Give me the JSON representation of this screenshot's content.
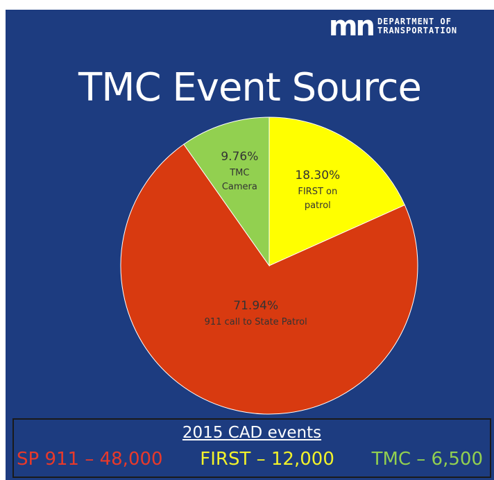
{
  "logo": {
    "mark": "mn",
    "text": "DEPARTMENT OF TRANSPORTATION"
  },
  "chart_data": {
    "type": "pie",
    "title": "TMC Event Source",
    "categories": [
      "FIRST on patrol",
      "911 call to State Patrol",
      "TMC Camera"
    ],
    "values": [
      18.3,
      71.94,
      9.76
    ],
    "value_labels": [
      "18.30%",
      "71.94%",
      "9.76%"
    ],
    "colors": [
      "#ffff00",
      "#d83a10",
      "#92d050"
    ]
  },
  "footer": {
    "title": "2015 CAD events",
    "items": [
      {
        "text": "SP 911 – 48,000",
        "color": "#e8392a"
      },
      {
        "text": "FIRST – 12,000",
        "color": "#f2f22a"
      },
      {
        "text": "TMC – 6,500",
        "color": "#92d050"
      }
    ]
  }
}
